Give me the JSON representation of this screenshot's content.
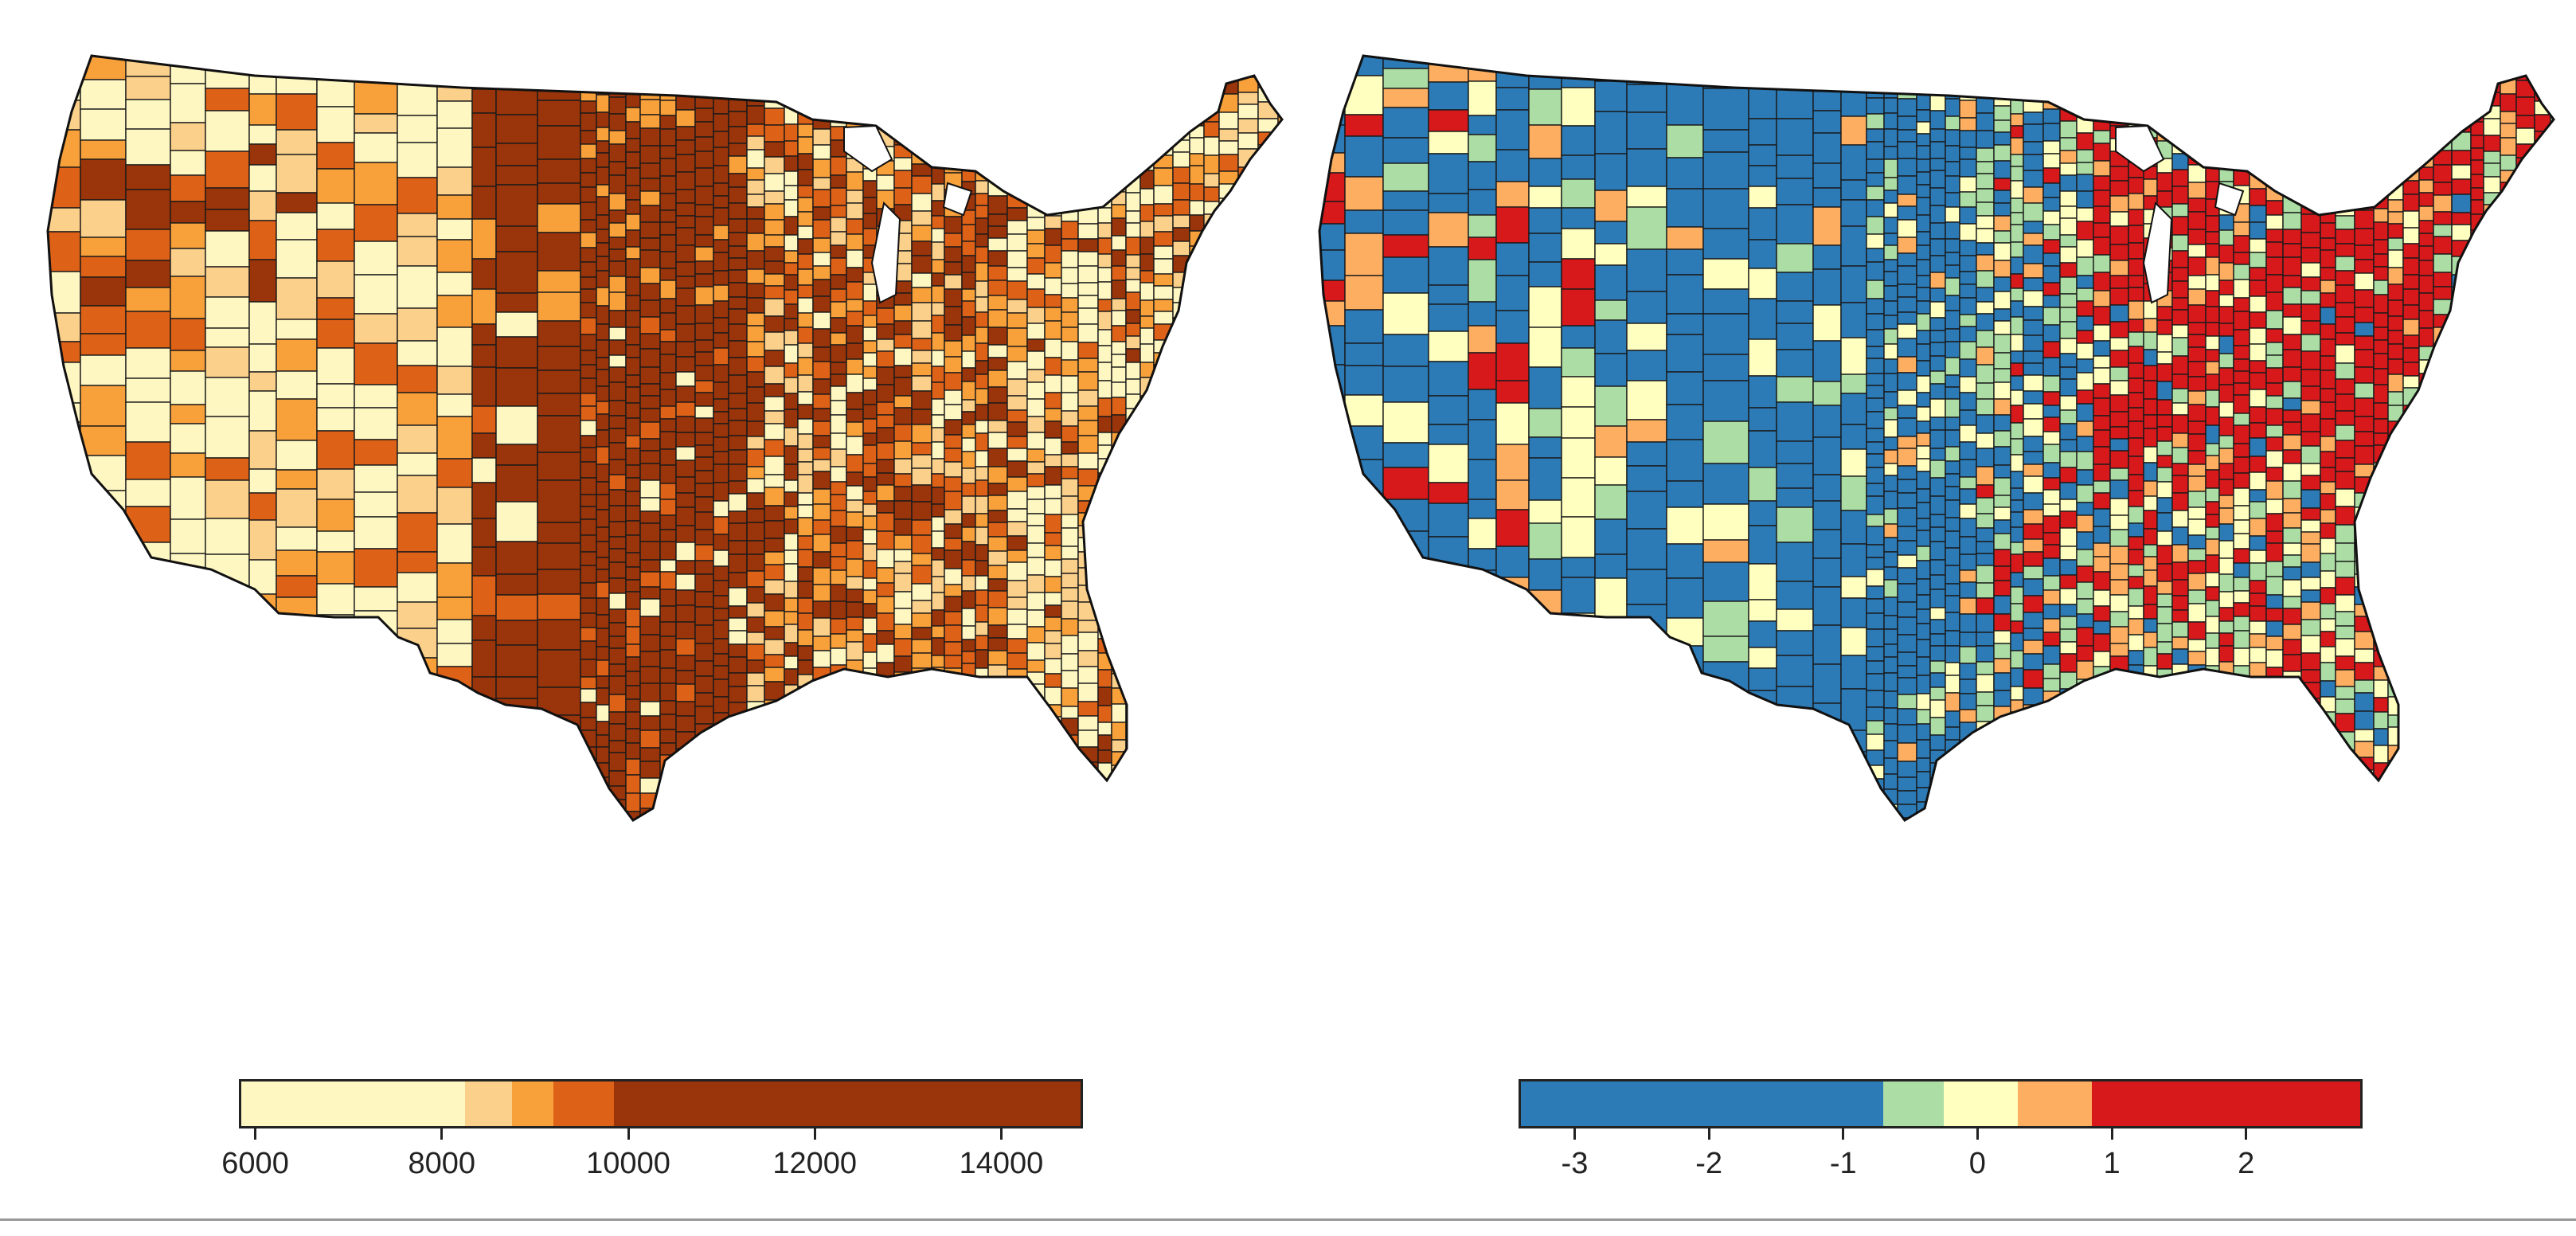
{
  "maps": [
    {
      "id": "left",
      "legend": {
        "colors": [
          "#fff7c2",
          "#fbd08a",
          "#f8a03a",
          "#de6118",
          "#9a340a"
        ],
        "stops": [
          5850,
          8250,
          8750,
          9200,
          9850,
          14850
        ],
        "ticks": [
          "6000",
          "8000",
          "10000",
          "12000",
          "14000"
        ],
        "tick_values": [
          6000,
          8000,
          10000,
          12000,
          14000
        ]
      }
    },
    {
      "id": "right",
      "legend": {
        "colors": [
          "#2c7bb6",
          "#abdda4",
          "#ffffbf",
          "#fdae61",
          "#d7191c"
        ],
        "stops": [
          -3.4,
          -0.7,
          -0.25,
          0.3,
          0.85,
          2.85
        ],
        "ticks": [
          "-3",
          "-2",
          "-1",
          "0",
          "1",
          "2"
        ],
        "tick_values": [
          -3,
          -2,
          -1,
          0,
          1,
          2
        ]
      }
    }
  ]
}
